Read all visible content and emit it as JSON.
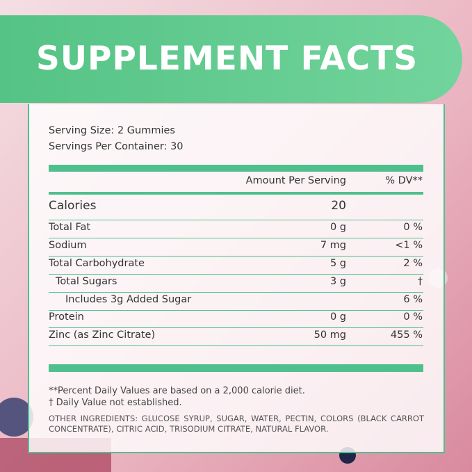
{
  "header": {
    "title": "SUPPLEMENT FACTS"
  },
  "serving": {
    "size": "Serving Size: 2 Gummies",
    "per_container": "Servings Per Container: 30"
  },
  "table": {
    "columns": {
      "amount": "Amount Per Serving",
      "dv": "% DV**"
    },
    "rows": [
      {
        "name": "Calories",
        "amount": "20"
      },
      {
        "name": "Total Fat",
        "amount": "0 g",
        "dv": "0 %"
      },
      {
        "name": "Sodium",
        "amount": "7 mg",
        "dv": "<1 %"
      },
      {
        "name": "Total Carbohydrate",
        "amount": "5 g",
        "dv": "2 %"
      },
      {
        "name": "Total Sugars",
        "amount": "3 g",
        "dv": "†"
      },
      {
        "name": "Includes 3g Added Sugar",
        "dv": "6 %"
      },
      {
        "name": "Protein",
        "amount": "0 g",
        "dv": "0 %"
      },
      {
        "name": "Zinc (as Zinc Citrate)",
        "amount": "50 mg",
        "dv": "455 %"
      }
    ]
  },
  "footnotes": [
    "**Percent Daily Values are based on a 2,000 calorie diet.",
    "† Daily Value not established."
  ],
  "ingredients": "OTHER INGREDIENTS: GLUCOSE SYRUP, SUGAR, WATER, PECTIN, COLORS (BLACK CARROT CONCENTRATE), CITRIC ACID, TRISODIUM CITRATE, NATURAL FLAVOR."
}
